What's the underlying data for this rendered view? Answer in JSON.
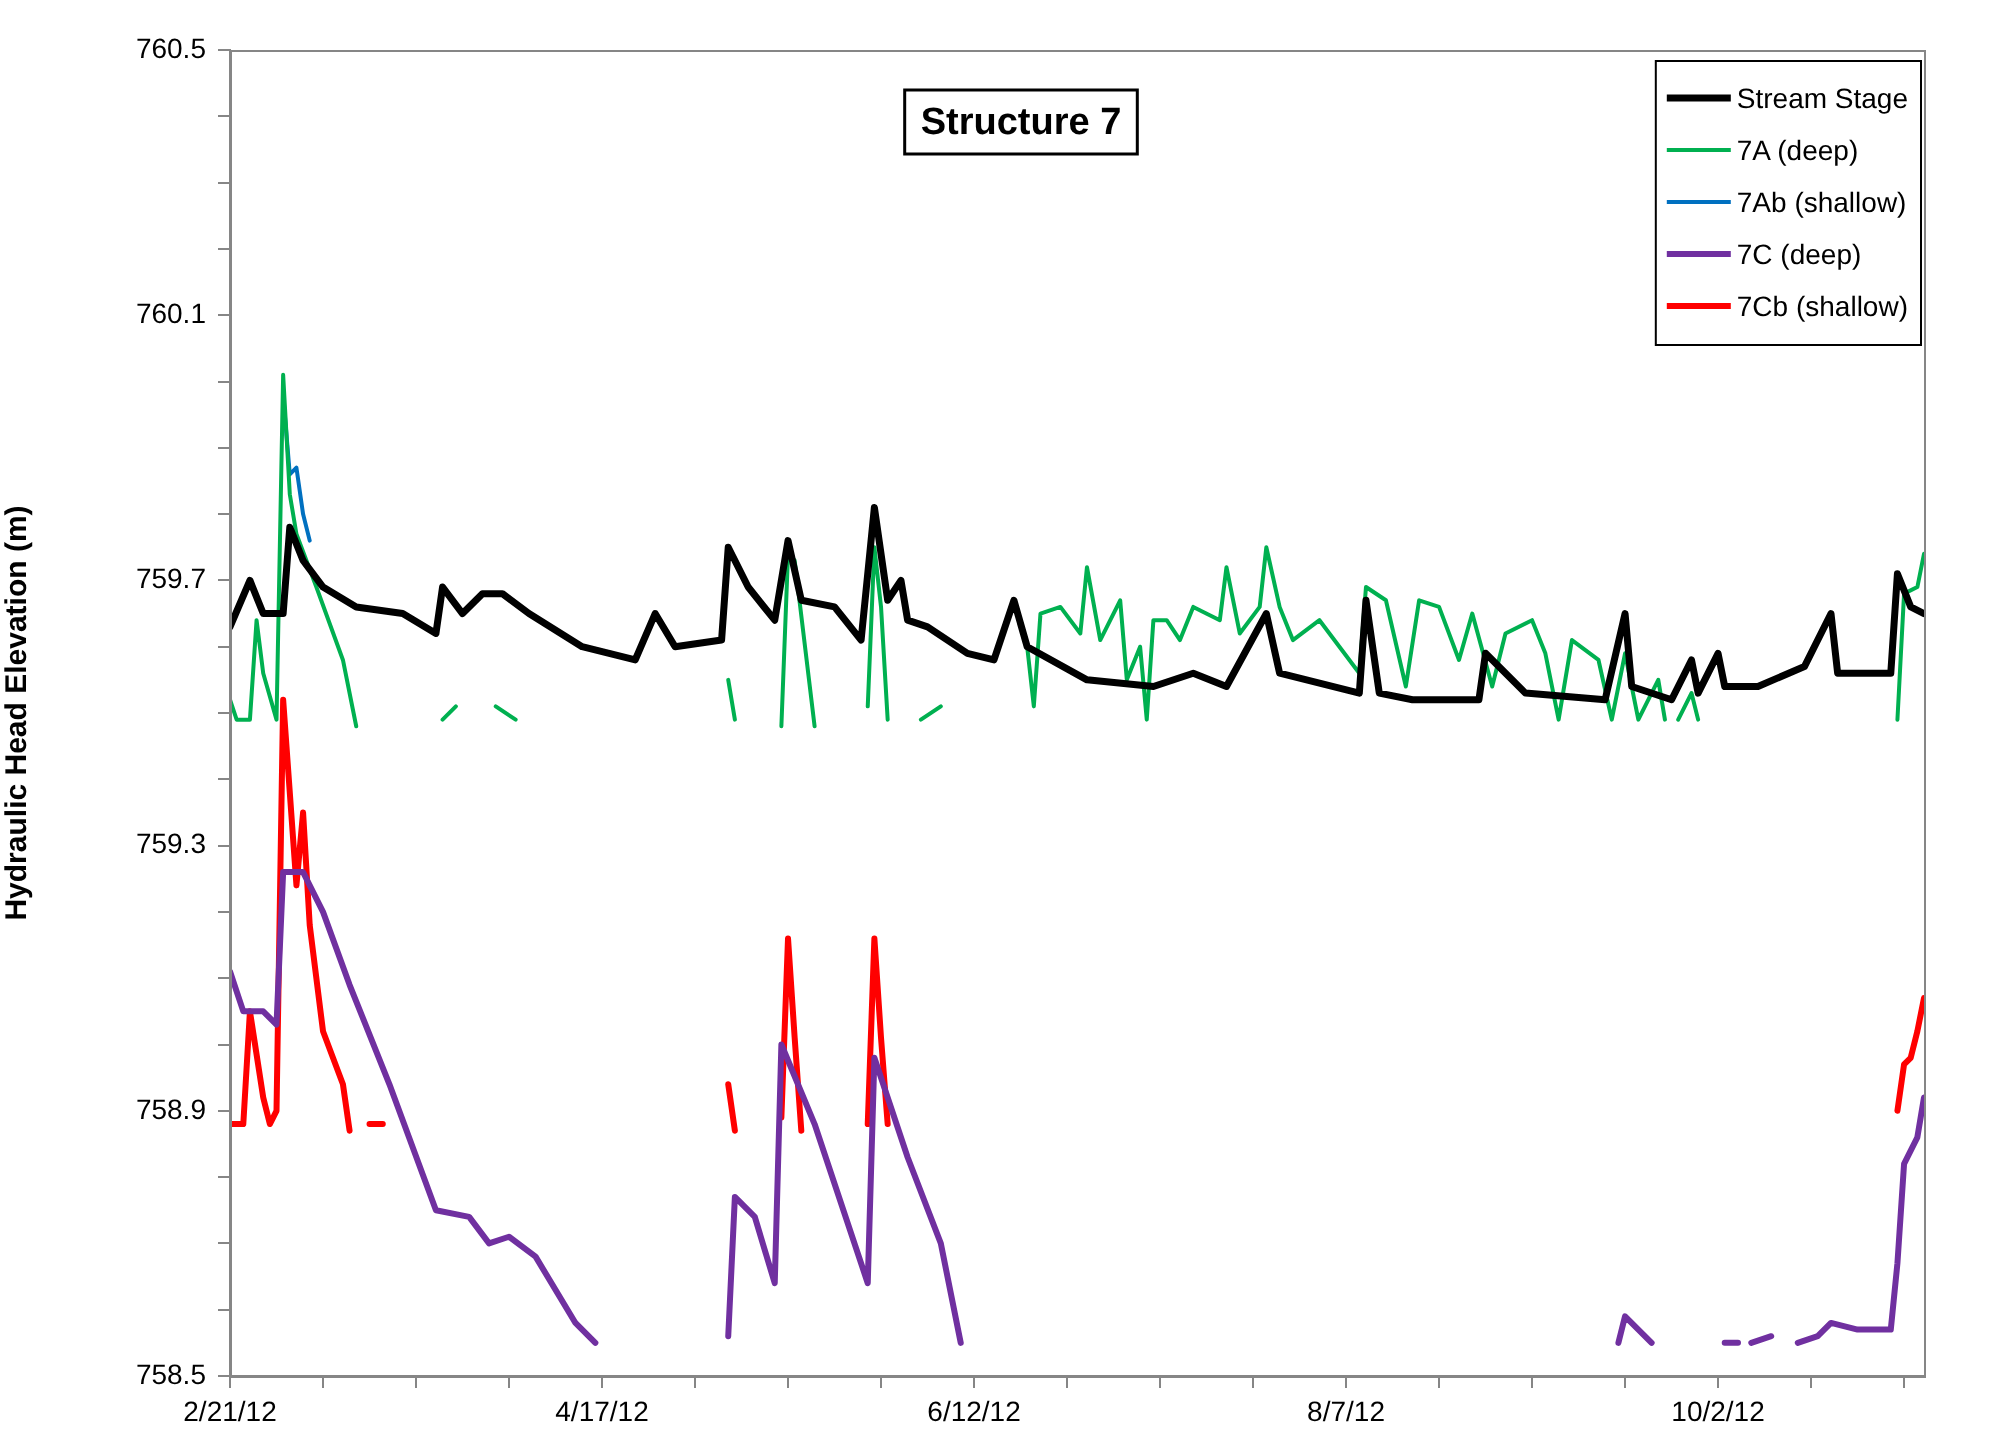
{
  "chart_data": {
    "type": "line",
    "title": "Structure 7",
    "ylabel": "Hydraulic Head Elevation (m)",
    "xlim": [
      "--02-21",
      "--11-02"
    ],
    "xticks": [
      {
        "value": "--02-21",
        "label": "2/21/12"
      },
      {
        "value": "--03-06",
        "label": null
      },
      {
        "value": "--03-20",
        "label": null
      },
      {
        "value": "--04-03",
        "label": null
      },
      {
        "value": "--04-17",
        "label": "4/17/12"
      },
      {
        "value": "--05-01",
        "label": null
      },
      {
        "value": "--05-15",
        "label": null
      },
      {
        "value": "--05-29",
        "label": null
      },
      {
        "value": "--06-12",
        "label": "6/12/12"
      },
      {
        "value": "--06-26",
        "label": null
      },
      {
        "value": "--07-10",
        "label": null
      },
      {
        "value": "--07-24",
        "label": null
      },
      {
        "value": "--08-07",
        "label": "8/7/12"
      },
      {
        "value": "--08-21",
        "label": null
      },
      {
        "value": "--09-04",
        "label": null
      },
      {
        "value": "--09-18",
        "label": null
      },
      {
        "value": "--10-02",
        "label": "10/2/12"
      },
      {
        "value": "--10-16",
        "label": null
      },
      {
        "value": "--10-30",
        "label": null
      }
    ],
    "ylim": [
      758.5,
      760.5
    ],
    "yticks": [
      758.5,
      {
        "value": 758.6,
        "label": null
      },
      {
        "value": 758.7,
        "label": null
      },
      {
        "value": 758.8,
        "label": null
      },
      758.9,
      {
        "value": 759.0,
        "label": null
      },
      {
        "value": 759.1,
        "label": null
      },
      {
        "value": 759.2,
        "label": null
      },
      759.3,
      {
        "value": 759.4,
        "label": null
      },
      {
        "value": 759.5,
        "label": null
      },
      {
        "value": 759.6,
        "label": null
      },
      759.7,
      {
        "value": 759.8,
        "label": null
      },
      {
        "value": 759.9,
        "label": null
      },
      {
        "value": 760.0,
        "label": null
      },
      760.1,
      {
        "value": 760.2,
        "label": null
      },
      {
        "value": 760.3,
        "label": null
      },
      {
        "value": 760.4,
        "label": null
      },
      760.5
    ],
    "legend": "top right",
    "grid": false,
    "series": [
      {
        "name": "Stream Stage",
        "color": "#000000",
        "x": [
          "--02-21",
          "--02-24",
          "--02-26",
          "--02-29",
          "--03-01",
          "--03-03",
          "--03-06",
          "--03-11",
          "--03-18",
          "--03-23",
          "--03-24",
          "--03-27",
          "--03-30",
          "--04-02",
          "--04-06",
          "--04-14",
          "--04-22",
          "--04-25",
          "--04-28",
          "--05-05",
          "--05-06",
          "--05-09",
          "--05-13",
          "--05-15",
          "--05-17",
          "--05-22",
          "--05-26",
          "--05-28",
          "--05-30",
          "--06-01",
          "--06-02",
          "--06-05",
          "--06-11",
          "--06-15",
          "--06-18",
          "--06-20",
          "--06-29",
          "--07-09",
          "--07-15",
          "--07-20",
          "--07-26",
          "--07-28",
          "--08-09",
          "--08-10",
          "--08-12",
          "--08-17",
          "--08-27",
          "--08-28",
          "--09-03",
          "--09-15",
          "--09-18",
          "--09-19",
          "--09-25",
          "--09-28",
          "--09-29",
          "--10-02",
          "--10-03",
          "--10-08",
          "--10-15",
          "--10-19",
          "--10-20",
          "--10-28",
          "--10-29",
          "--10-31",
          "--11-02"
        ],
        "values": [
          759.63,
          759.7,
          759.65,
          759.65,
          759.78,
          759.73,
          759.69,
          759.66,
          759.65,
          759.62,
          759.69,
          759.65,
          759.68,
          759.68,
          759.65,
          759.6,
          759.58,
          759.65,
          759.6,
          759.61,
          759.75,
          759.69,
          759.64,
          759.76,
          759.67,
          759.66,
          759.61,
          759.81,
          759.67,
          759.7,
          759.64,
          759.63,
          759.59,
          759.58,
          759.67,
          759.6,
          759.55,
          759.54,
          759.56,
          759.54,
          759.65,
          759.56,
          759.53,
          759.67,
          759.53,
          759.52,
          759.52,
          759.59,
          759.53,
          759.52,
          759.65,
          759.54,
          759.52,
          759.58,
          759.53,
          759.59,
          759.54,
          759.54,
          759.57,
          759.65,
          759.56,
          759.56,
          759.71,
          759.66,
          759.65
        ]
      },
      {
        "name": "7A (deep)",
        "color": "#00b050",
        "x": [
          "--02-21",
          "--02-22",
          "--02-24",
          "--02-25",
          "--02-26",
          "--02-28",
          "--02-29",
          "--03-01",
          "--03-02",
          "--03-05",
          "--03-09",
          "--03-11",
          "--03-18",
          "--03-24",
          "--03-26",
          "--03-30",
          "--04-01",
          "--04-04",
          "--04-20",
          "--05-06",
          "--05-07",
          "--05-10",
          "--05-14",
          "--05-15",
          "--05-16",
          "--05-19",
          "--05-23",
          "--05-27",
          "--05-28",
          "--05-29",
          "--05-30",
          "--06-02",
          "--06-04",
          "--06-07",
          "--06-12",
          "--06-20",
          "--06-21",
          "--06-22",
          "--06-25",
          "--06-28",
          "--06-29",
          "--07-01",
          "--07-04",
          "--07-05",
          "--07-07",
          "--07-08",
          "--07-09",
          "--07-11",
          "--07-13",
          "--07-15",
          "--07-19",
          "--07-20",
          "--07-22",
          "--07-25",
          "--07-26",
          "--07-28",
          "--07-30",
          "--08-03",
          "--08-06",
          "--08-09",
          "--08-10",
          "--08-13",
          "--08-16",
          "--08-18",
          "--08-21",
          "--08-24",
          "--08-26",
          "--08-29",
          "--08-31",
          "--09-04",
          "--09-06",
          "--09-08",
          "--09-10",
          "--09-14",
          "--09-16",
          "--09-18",
          "--09-20",
          "--09-23",
          "--09-24",
          "--09-25",
          "--09-26",
          "--09-28",
          "--09-29",
          "--10-15",
          "--10-29",
          "--10-30",
          "--11-01",
          "--11-02"
        ],
        "values": [
          759.52,
          759.49,
          759.49,
          759.64,
          759.56,
          759.49,
          760.01,
          759.83,
          759.77,
          759.69,
          759.58,
          759.48,
          null,
          759.49,
          759.51,
          null,
          759.51,
          759.49,
          null,
          759.55,
          759.49,
          null,
          759.48,
          759.74,
          759.73,
          759.48,
          null,
          759.51,
          759.75,
          759.66,
          759.49,
          null,
          759.49,
          759.51,
          null,
          759.6,
          759.51,
          759.65,
          759.66,
          759.62,
          759.72,
          759.61,
          759.67,
          759.55,
          759.6,
          759.49,
          759.64,
          759.64,
          759.61,
          759.66,
          759.64,
          759.72,
          759.62,
          759.66,
          759.75,
          759.66,
          759.61,
          759.64,
          759.6,
          759.56,
          759.69,
          759.67,
          759.54,
          759.67,
          759.66,
          759.58,
          759.65,
          759.54,
          759.62,
          759.64,
          759.59,
          759.49,
          759.61,
          759.58,
          759.49,
          759.59,
          759.49,
          759.55,
          759.49,
          null,
          759.49,
          759.53,
          759.49,
          null,
          759.49,
          759.68,
          759.69,
          759.74
        ]
      },
      {
        "name": "7Ab (shallow)",
        "color": "#0070c0",
        "x": [
          "--02-29",
          "--03-01",
          "--03-02",
          "--03-03",
          "--03-04"
        ],
        "values": [
          759.98,
          759.86,
          759.87,
          759.8,
          759.76
        ]
      },
      {
        "name": "7C (deep)",
        "color": "#7030a0",
        "x": [
          "--02-21",
          "--02-23",
          "--02-26",
          "--02-28",
          "--02-29",
          "--03-03",
          "--03-06",
          "--03-10",
          "--03-16",
          "--03-23",
          "--03-28",
          "--03-31",
          "--04-03",
          "--04-07",
          "--04-13",
          "--04-16",
          "--04-30",
          "--05-06",
          "--05-07",
          "--05-10",
          "--05-13",
          "--05-14",
          "--05-19",
          "--05-27",
          "--05-28",
          "--06-02",
          "--06-07",
          "--06-10",
          "--08-01",
          "--09-17",
          "--09-18",
          "--09-22",
          "--09-28",
          "--10-03",
          "--10-05",
          "--10-06",
          "--10-07",
          "--10-10",
          "--10-11",
          "--10-14",
          "--10-17",
          "--10-19",
          "--10-23",
          "--10-28",
          "--10-29",
          "--10-30",
          "--11-01",
          "--11-02"
        ],
        "values": [
          759.11,
          759.05,
          759.05,
          759.03,
          759.26,
          759.26,
          759.2,
          759.09,
          758.94,
          758.75,
          758.74,
          758.7,
          758.71,
          758.68,
          758.58,
          758.55,
          null,
          758.56,
          758.77,
          758.74,
          758.64,
          759.0,
          758.88,
          758.64,
          758.98,
          758.83,
          758.7,
          758.55,
          null,
          758.55,
          758.59,
          758.55,
          null,
          758.55,
          758.55,
          null,
          758.55,
          758.56,
          null,
          758.55,
          758.56,
          758.58,
          758.57,
          758.57,
          758.67,
          758.82,
          758.86,
          758.92
        ]
      },
      {
        "name": "7Cb (shallow)",
        "color": "#ff0000",
        "x": [
          "--02-21",
          "--02-23",
          "--02-24",
          "--02-26",
          "--02-27",
          "--02-28",
          "--02-29",
          "--03-01",
          "--03-02",
          "--03-03",
          "--03-04",
          "--03-06",
          "--03-09",
          "--03-10",
          "--03-12",
          "--03-13",
          "--03-15",
          "--04-20",
          "--05-06",
          "--05-07",
          "--05-10",
          "--05-14",
          "--05-15",
          "--05-16",
          "--05-17",
          "--05-22",
          "--05-27",
          "--05-28",
          "--05-29",
          "--05-30",
          "--08-01",
          "--10-29",
          "--10-30",
          "--10-31",
          "--11-01",
          "--11-02"
        ],
        "values": [
          758.88,
          758.88,
          759.05,
          758.92,
          758.88,
          758.9,
          759.52,
          759.38,
          759.24,
          759.35,
          759.18,
          759.02,
          758.94,
          758.87,
          null,
          758.88,
          758.88,
          null,
          758.94,
          758.87,
          null,
          758.89,
          759.16,
          759.01,
          758.87,
          null,
          758.88,
          759.16,
          759.01,
          758.88,
          null,
          758.9,
          758.97,
          758.98,
          759.02,
          759.07
        ]
      }
    ]
  }
}
